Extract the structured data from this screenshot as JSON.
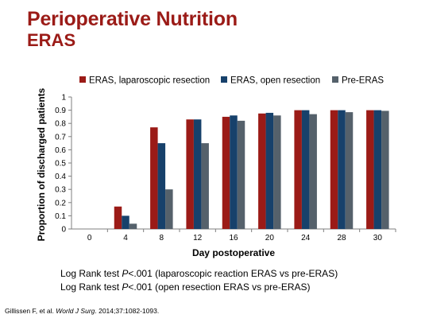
{
  "slide": {
    "title": "Perioperative Nutrition",
    "subtitle": "ERAS"
  },
  "notes": [
    {
      "pre": "Log Rank test ",
      "italic": "P",
      "post": "<.001 (laparoscopic reaction ERAS vs pre-ERAS)"
    },
    {
      "pre": "Log Rank test ",
      "italic": "P",
      "post": "<.001 (open resection ERAS vs pre-ERAS)"
    }
  ],
  "citation": {
    "pre": "Gillissen F, et al. ",
    "italic": "World J Surg",
    "post": ". 2014;37:1082-1093."
  },
  "colors": {
    "title": "#9b1b17",
    "series": [
      "#9b1b17",
      "#17416b",
      "#55616b"
    ]
  },
  "chart_data": {
    "type": "bar",
    "categories": [
      "0",
      "4",
      "8",
      "12",
      "16",
      "20",
      "24",
      "28",
      "30"
    ],
    "series": [
      {
        "name": "ERAS, laparoscopic resection",
        "values": [
          0,
          0.17,
          0.77,
          0.83,
          0.85,
          0.875,
          0.9,
          0.9,
          0.9
        ]
      },
      {
        "name": "ERAS, open resection",
        "values": [
          0,
          0.1,
          0.65,
          0.83,
          0.86,
          0.88,
          0.9,
          0.9,
          0.9
        ]
      },
      {
        "name": "Pre-ERAS",
        "values": [
          0,
          0.04,
          0.3,
          0.65,
          0.82,
          0.86,
          0.87,
          0.885,
          0.895
        ]
      }
    ],
    "xlabel": "Day postoperative",
    "ylabel": "Proportion of discharged patients",
    "ylim": [
      0,
      1
    ],
    "yticks": [
      "0",
      "0.1",
      "0.2",
      "0.3",
      "0.4",
      "0.5",
      "0.6",
      "0.7",
      "0.8",
      "0.9",
      "1"
    ],
    "legend_position": "top",
    "grid": false
  }
}
